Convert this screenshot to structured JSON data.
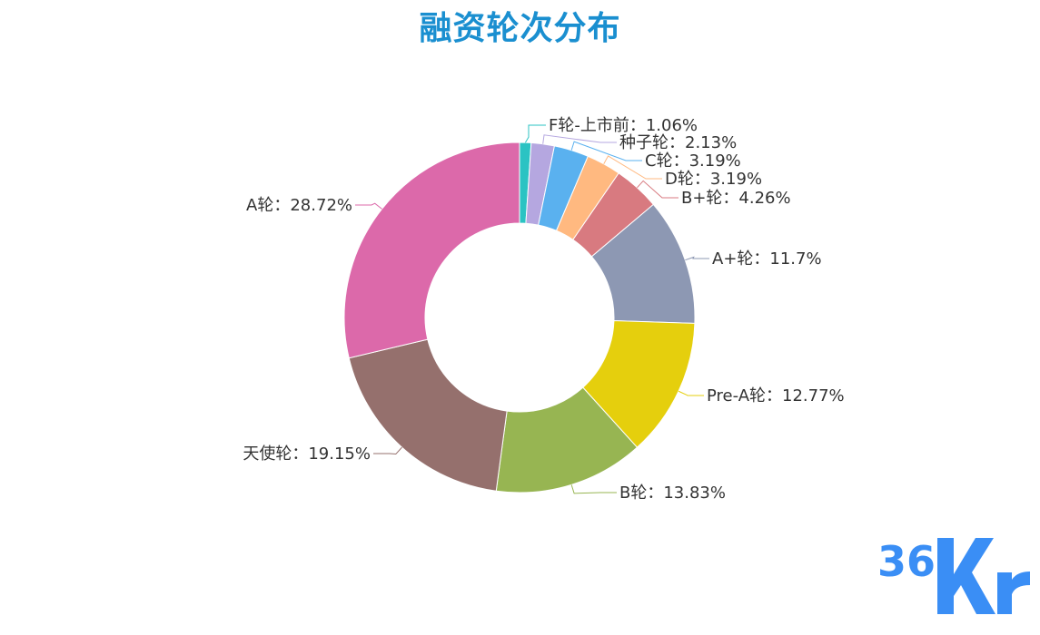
{
  "title": "融资轮次分布",
  "logo_text": "36Kr",
  "chart_data": {
    "type": "pie",
    "title": "融资轮次分布",
    "donut": true,
    "label_format": "{name}：{value}%",
    "slices": [
      {
        "name": "F轮-上市前",
        "value": 1.06,
        "color": "#2bc3c3"
      },
      {
        "name": "种子轮",
        "value": 2.13,
        "color": "#b5a7e0"
      },
      {
        "name": "C轮",
        "value": 3.19,
        "color": "#5ab1ef"
      },
      {
        "name": "D轮",
        "value": 3.19,
        "color": "#ffb980"
      },
      {
        "name": "B+轮",
        "value": 4.26,
        "color": "#d87a80"
      },
      {
        "name": "A+轮",
        "value": 11.7,
        "color": "#8d98b3"
      },
      {
        "name": "Pre-A轮",
        "value": 12.77,
        "color": "#e5cf0d"
      },
      {
        "name": "B轮",
        "value": 13.83,
        "color": "#97b552"
      },
      {
        "name": "天使轮",
        "value": 19.15,
        "color": "#95706d"
      },
      {
        "name": "A轮",
        "value": 28.72,
        "color": "#dc69aa"
      }
    ]
  }
}
